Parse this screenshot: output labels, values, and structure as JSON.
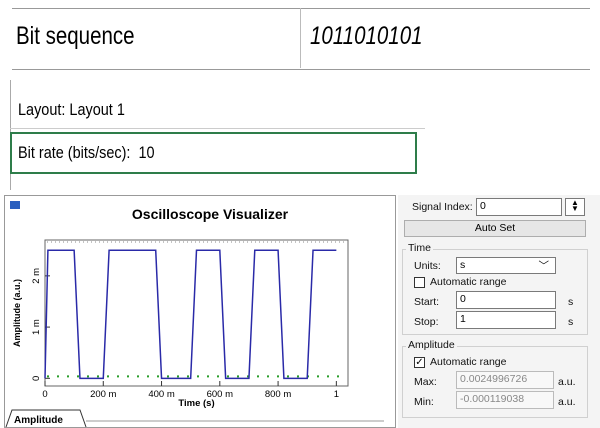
{
  "table": {
    "rows": [
      [
        "Bit sequence",
        "1011010101"
      ]
    ]
  },
  "layout_label": "Layout: Layout 1",
  "bit_rate": {
    "label": "Bit rate (bits/sec):",
    "value": "10"
  },
  "oscilloscope": {
    "title": "Oscilloscope Visualizer",
    "tab": "Amplitude",
    "plot": {
      "type": "line",
      "x_label": "Time (s)",
      "y_label": "Amplitude (a.u.)",
      "color": "#2a2aa8",
      "x": [
        0,
        0.01,
        0.1,
        0.12,
        0.2,
        0.22,
        0.38,
        0.4,
        0.5,
        0.52,
        0.6,
        0.62,
        0.7,
        0.72,
        0.8,
        0.82,
        0.9,
        0.92,
        1.0
      ],
      "values": [
        0,
        0.0025,
        0.0025,
        0,
        0,
        0.0025,
        0.0025,
        0,
        0,
        0.0025,
        0.0025,
        0,
        0,
        0.0025,
        0.0025,
        0,
        0,
        0.0025,
        0.0025
      ],
      "xlim": [
        0,
        1.04
      ],
      "ylim": [
        -0.00015,
        0.0027
      ],
      "xticks": [
        0,
        {
          "value": 0.2,
          "label": "200 m"
        },
        {
          "value": 0.4,
          "label": "400 m"
        },
        {
          "value": 0.6,
          "label": "600 m"
        },
        {
          "value": 0.8,
          "label": "800 m"
        },
        1
      ],
      "yticks": [
        0,
        {
          "value": 0.001,
          "label": "1 m"
        },
        {
          "value": 0.002,
          "label": "2 m"
        }
      ]
    }
  },
  "controls": {
    "signal_index": {
      "label": "Signal Index:",
      "value": "0"
    },
    "auto_set": "Auto Set",
    "time": {
      "group": "Time",
      "units_label": "Units:",
      "units": "s",
      "auto_range": {
        "label": "Automatic range",
        "checked": false
      },
      "start": {
        "label": "Start:",
        "value": "0",
        "unit": "s"
      },
      "stop": {
        "label": "Stop:",
        "value": "1",
        "unit": "s"
      }
    },
    "amplitude": {
      "group": "Amplitude",
      "auto_range": {
        "label": "Automatic range",
        "checked": true
      },
      "max": {
        "label": "Max:",
        "value": "0.0024996726",
        "unit": "a.u."
      },
      "min": {
        "label": "Min:",
        "value": "-0.000119038",
        "unit": "a.u."
      }
    }
  }
}
